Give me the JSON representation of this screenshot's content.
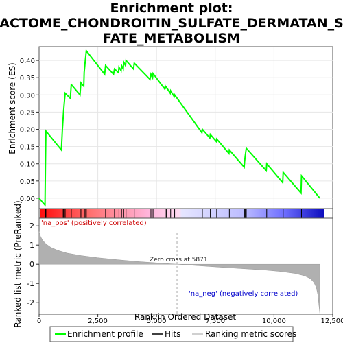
{
  "chart_data": {
    "type": "line",
    "title_lines": [
      "Enrichment plot:",
      "REACTOME_CHONDROITIN_SULFATE_DERMATAN_SUL",
      "FATE_METABOLISM"
    ],
    "panels": {
      "es": {
        "ylabel": "Enrichment score (ES)",
        "ylim": [
          -0.03,
          0.44
        ],
        "yticks": [
          "0.00",
          "0.05",
          "0.10",
          "0.15",
          "0.20",
          "0.25",
          "0.30",
          "0.35",
          "0.40"
        ],
        "grid": true
      },
      "metric": {
        "ylabel": "Ranked list metric (PreRanked)",
        "ylim": [
          -2.6,
          2.4
        ],
        "yticks": [
          "-2",
          "-1",
          "0",
          "1",
          "2"
        ],
        "xlabel": "Rank in Ordered Dataset",
        "xticks": [
          "0",
          "2,500",
          "5,000",
          "7,500",
          "10,000",
          "12,500"
        ],
        "zero_cross_label": "Zero cross at 5871",
        "zero_cross": 5871,
        "pos_label": "'na_pos' (positively correlated)",
        "neg_label": "'na_neg' (negatively correlated)"
      }
    },
    "xlim": [
      0,
      12500
    ],
    "n_genes": 11950,
    "hits": [
      270,
      290,
      990,
      1040,
      1070,
      1110,
      1370,
      1780,
      1920,
      1960,
      2010,
      2830,
      3210,
      3400,
      3510,
      3600,
      3700,
      4050,
      4760,
      4850,
      5370,
      5420,
      5600,
      5770,
      6950,
      7290,
      7560,
      8100,
      8750,
      8780,
      8820,
      9690,
      10390,
      11170
    ],
    "es_curve": [
      [
        0,
        0.0
      ],
      [
        250,
        -0.02
      ],
      [
        270,
        0.09
      ],
      [
        290,
        0.195
      ],
      [
        950,
        0.14
      ],
      [
        990,
        0.198
      ],
      [
        1040,
        0.25
      ],
      [
        1070,
        0.275
      ],
      [
        1110,
        0.305
      ],
      [
        1330,
        0.29
      ],
      [
        1370,
        0.33
      ],
      [
        1740,
        0.3
      ],
      [
        1780,
        0.335
      ],
      [
        1900,
        0.325
      ],
      [
        1920,
        0.365
      ],
      [
        1960,
        0.395
      ],
      [
        2010,
        0.428
      ],
      [
        2790,
        0.36
      ],
      [
        2830,
        0.385
      ],
      [
        3170,
        0.36
      ],
      [
        3210,
        0.375
      ],
      [
        3380,
        0.365
      ],
      [
        3400,
        0.38
      ],
      [
        3490,
        0.37
      ],
      [
        3510,
        0.385
      ],
      [
        3580,
        0.375
      ],
      [
        3600,
        0.395
      ],
      [
        3680,
        0.385
      ],
      [
        3700,
        0.4
      ],
      [
        4020,
        0.375
      ],
      [
        4050,
        0.392
      ],
      [
        4720,
        0.345
      ],
      [
        4760,
        0.36
      ],
      [
        4830,
        0.35
      ],
      [
        4850,
        0.362
      ],
      [
        5340,
        0.318
      ],
      [
        5370,
        0.325
      ],
      [
        5400,
        0.32
      ],
      [
        5420,
        0.322
      ],
      [
        5580,
        0.305
      ],
      [
        5600,
        0.312
      ],
      [
        5750,
        0.295
      ],
      [
        5770,
        0.3
      ],
      [
        6930,
        0.19
      ],
      [
        6950,
        0.2
      ],
      [
        7270,
        0.175
      ],
      [
        7290,
        0.185
      ],
      [
        7540,
        0.165
      ],
      [
        7560,
        0.172
      ],
      [
        8080,
        0.13
      ],
      [
        8100,
        0.14
      ],
      [
        8730,
        0.09
      ],
      [
        8750,
        0.108
      ],
      [
        8780,
        0.125
      ],
      [
        8820,
        0.145
      ],
      [
        9670,
        0.08
      ],
      [
        9690,
        0.1
      ],
      [
        10370,
        0.045
      ],
      [
        10390,
        0.075
      ],
      [
        11150,
        0.015
      ],
      [
        11170,
        0.065
      ],
      [
        11950,
        0.0
      ]
    ],
    "metric_curve": [
      [
        0,
        1.7
      ],
      [
        60,
        1.45
      ],
      [
        150,
        1.25
      ],
      [
        300,
        1.05
      ],
      [
        500,
        0.88
      ],
      [
        800,
        0.72
      ],
      [
        1200,
        0.58
      ],
      [
        1800,
        0.45
      ],
      [
        2500,
        0.34
      ],
      [
        3300,
        0.24
      ],
      [
        4200,
        0.14
      ],
      [
        5000,
        0.07
      ],
      [
        5871,
        0.0
      ],
      [
        6800,
        -0.08
      ],
      [
        7800,
        -0.16
      ],
      [
        8800,
        -0.24
      ],
      [
        9600,
        -0.3
      ],
      [
        10300,
        -0.38
      ],
      [
        10900,
        -0.48
      ],
      [
        11300,
        -0.6
      ],
      [
        11550,
        -0.75
      ],
      [
        11700,
        -0.95
      ],
      [
        11800,
        -1.2
      ],
      [
        11870,
        -1.6
      ],
      [
        11920,
        -2.2
      ],
      [
        11950,
        -2.55
      ]
    ],
    "legend": {
      "entries": [
        {
          "name": "Enrichment profile",
          "color": "#00ff00"
        },
        {
          "name": "Hits",
          "color": "#000000"
        },
        {
          "name": "Ranking metric scores",
          "color": "#c0c0c0"
        }
      ],
      "placement": "bottom"
    },
    "colors": {
      "es_line": "#00ff00",
      "metric_fill": "#b0b0b0",
      "pos_label": "#cc0000",
      "neg_label": "#0000cc",
      "grid": "#e6e6e6"
    }
  }
}
